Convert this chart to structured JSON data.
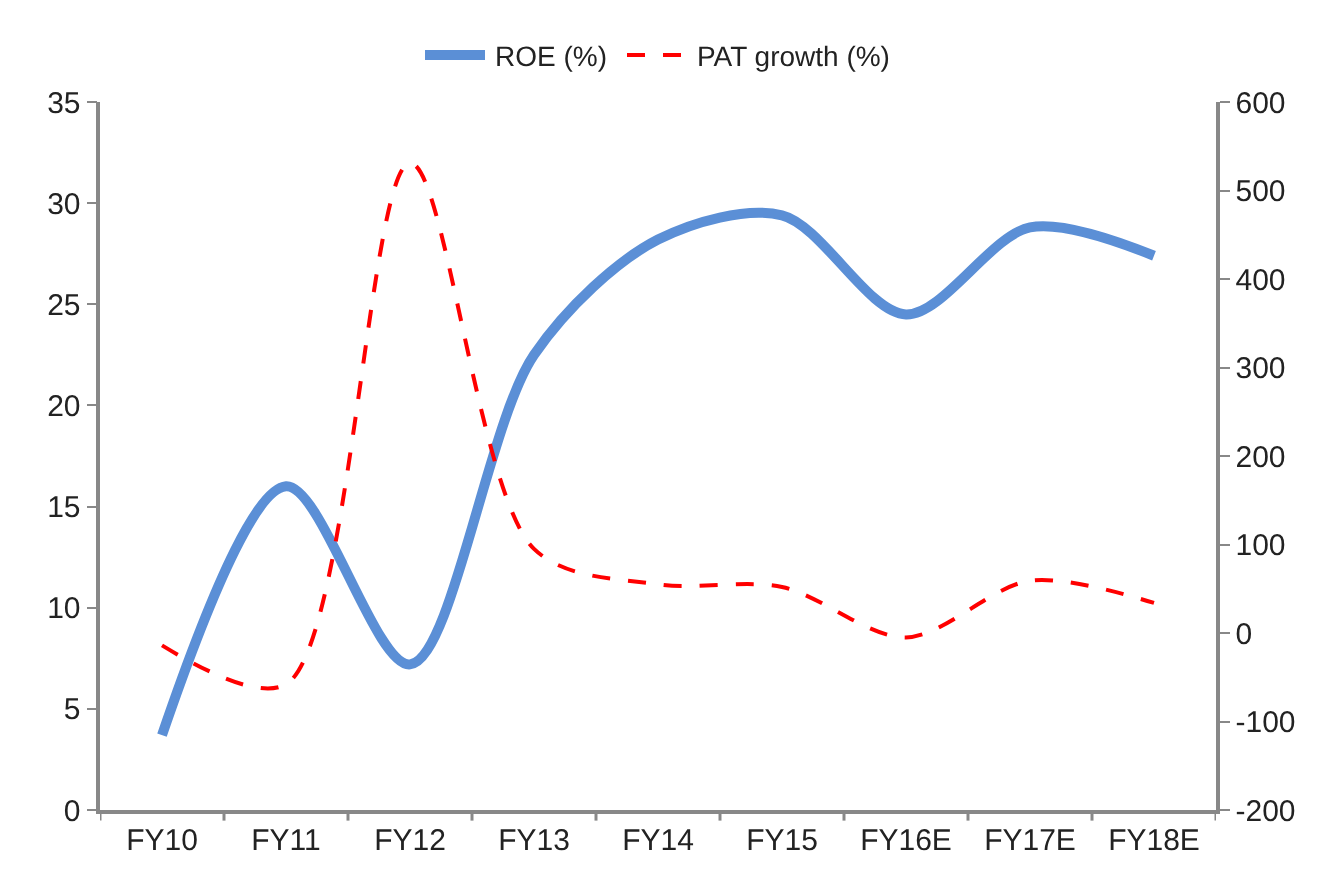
{
  "chart_data": {
    "type": "line",
    "categories": [
      "FY10",
      "FY11",
      "FY12",
      "FY13",
      "FY14",
      "FY15",
      "FY16E",
      "FY17E",
      "FY18E"
    ],
    "series": [
      {
        "name": "ROE (%)",
        "color": "#5b8fd6",
        "values": [
          3.7,
          16,
          7.2,
          22.5,
          28.2,
          29.4,
          24.5,
          28.8,
          27.4
        ],
        "line_style": "solid"
      },
      {
        "name": "PAT growth (%)",
        "color": "#ff0000",
        "values": [
          -14,
          -58,
          531,
          95,
          55,
          52,
          -5,
          59,
          34
        ],
        "axis": "y2",
        "line_style": "dashed"
      }
    ],
    "ylim": [
      0,
      35
    ],
    "yticks": [
      0,
      5,
      10,
      15,
      20,
      25,
      30,
      35
    ],
    "y2lim": [
      -200,
      600
    ],
    "y2ticks": [
      -200,
      -100,
      0,
      100,
      200,
      300,
      400,
      500,
      600
    ],
    "legend": "top",
    "marker": "none"
  }
}
